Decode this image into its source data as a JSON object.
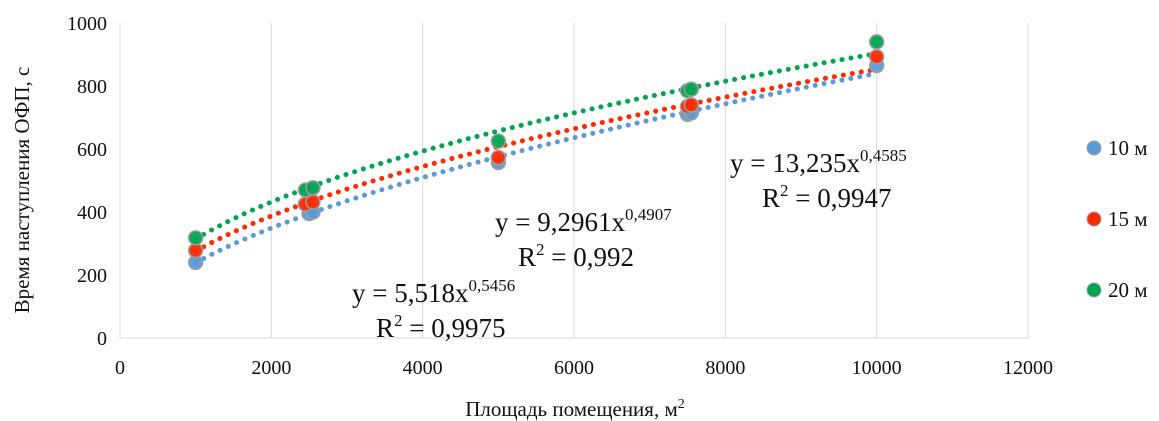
{
  "chart_data": {
    "type": "scatter",
    "title": "",
    "xlabel": "Площадь помещения, м",
    "xlabel_sup": "2",
    "ylabel": "Время наступления ОФП, с",
    "xlim": [
      0,
      12000
    ],
    "ylim": [
      0,
      1000
    ],
    "xticks": [
      "0",
      "2000",
      "4000",
      "6000",
      "8000",
      "10000",
      "12000"
    ],
    "yticks": [
      "0",
      "200",
      "400",
      "600",
      "800",
      "1000"
    ],
    "grid": "vertical",
    "legend_position": "right",
    "series": [
      {
        "name": "10 м",
        "color": "#5b9bd5",
        "points": [
          [
            1000,
            240
          ],
          [
            2500,
            395
          ],
          [
            2550,
            400
          ],
          [
            5000,
            557
          ],
          [
            7500,
            710
          ],
          [
            7550,
            715
          ],
          [
            10000,
            865
          ]
        ],
        "trend": {
          "a": 5.518,
          "b": 0.5456
        },
        "equation": {
          "prefix": "y = 5,518x",
          "exponent": "0,5456",
          "r2_prefix": "R",
          "r2_sup": "2",
          "r2_value": " = 0,9975"
        }
      },
      {
        "name": "15 м",
        "color": "#ff2a00",
        "points": [
          [
            1000,
            278
          ],
          [
            2450,
            425
          ],
          [
            2550,
            432
          ],
          [
            5000,
            573
          ],
          [
            7500,
            735
          ],
          [
            7550,
            740
          ],
          [
            10000,
            893
          ]
        ],
        "trend": {
          "a": 9.2961,
          "b": 0.4907
        },
        "equation": {
          "prefix": "y = 9,2961x",
          "exponent": "0,4907",
          "r2_prefix": "R",
          "r2_sup": "2",
          "r2_value": " = 0,992"
        }
      },
      {
        "name": "20 м",
        "color": "#00a550",
        "points": [
          [
            1000,
            318
          ],
          [
            2450,
            470
          ],
          [
            2550,
            477
          ],
          [
            5000,
            625
          ],
          [
            7500,
            785
          ],
          [
            7550,
            790
          ],
          [
            10000,
            940
          ]
        ],
        "trend": {
          "a": 13.235,
          "b": 0.4585
        },
        "equation": {
          "prefix": "y = 13,235x",
          "exponent": "0,4585",
          "r2_prefix": "R",
          "r2_sup": "2",
          "r2_value": " = 0,9947"
        }
      }
    ]
  },
  "colors": {
    "grid": "#d9d9d9",
    "text": "#111111",
    "marker_ring": "#9e9e9e"
  }
}
